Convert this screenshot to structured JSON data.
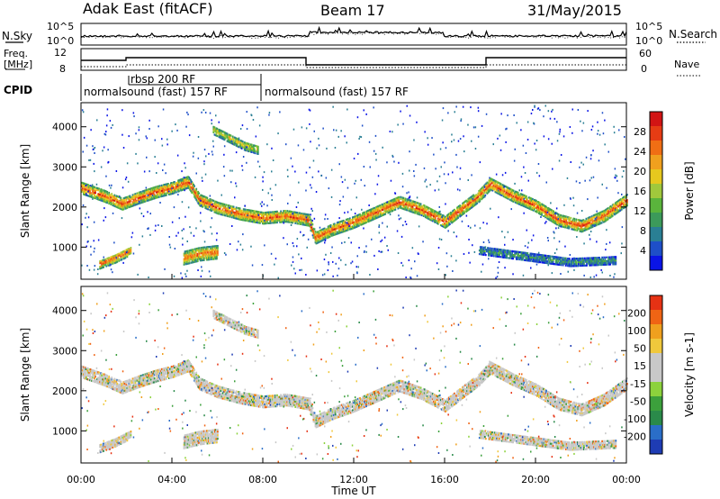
{
  "header": {
    "station": "Adak East (fitACF)",
    "beam": "Beam 17",
    "date": "31/May/2015"
  },
  "top_panels": {
    "nsky_label": "N.Sky",
    "nsearch_label": "N.Search",
    "noise_left_ticks": [
      "10^5",
      "10^0"
    ],
    "noise_right_ticks": [
      "10^5",
      "10^0"
    ],
    "freq_label_1": "Freq.",
    "freq_label_2": "[MHz]",
    "freq_ticks": [
      "12",
      "8"
    ],
    "nave_label": "Nave",
    "nave_ticks": [
      "60",
      "0"
    ],
    "cpid_label": "CPID",
    "cpid_segments": [
      "normalsound (fast) 157 RF",
      "rbsp 200 RF",
      "normalsound (fast) 157 RF"
    ]
  },
  "chart_data": [
    {
      "type": "heatmap",
      "panel": "power",
      "ylabel": "Slant Range [km]",
      "y_ticks": [
        "1000",
        "2000",
        "3000",
        "4000"
      ],
      "ylim": [
        200,
        4600
      ],
      "xlim_hours": [
        0,
        24
      ],
      "colorbar_label": "Power [dB]",
      "colorbar_ticks": [
        "28",
        "24",
        "20",
        "16",
        "12",
        "8",
        "4"
      ],
      "colorbar_colors": [
        "#0a14e6",
        "#1e4fc8",
        "#2a7f94",
        "#3c9a5a",
        "#5ab43c",
        "#a0c83c",
        "#e6c81e",
        "#f0a01e",
        "#f06e14",
        "#e63c14",
        "#d21414"
      ],
      "echo_bands": [
        {
          "name": "band-main",
          "points": [
            [
              0,
              2500
            ],
            [
              1.0,
              2300
            ],
            [
              1.8,
              2100
            ],
            [
              2.5,
              2250
            ],
            [
              3.3,
              2400
            ],
            [
              4.0,
              2500
            ],
            [
              4.7,
              2650
            ],
            [
              5.2,
              2200
            ],
            [
              6.0,
              2000
            ],
            [
              7.0,
              1850
            ],
            [
              8.0,
              1750
            ],
            [
              9.0,
              1800
            ],
            [
              10.0,
              1700
            ],
            [
              10.3,
              1250
            ],
            [
              11.0,
              1450
            ],
            [
              12.0,
              1650
            ],
            [
              13.0,
              1900
            ],
            [
              14.0,
              2150
            ],
            [
              15.0,
              1950
            ],
            [
              16.0,
              1650
            ],
            [
              16.8,
              2000
            ],
            [
              17.5,
              2300
            ],
            [
              18.0,
              2600
            ],
            [
              19.0,
              2300
            ],
            [
              20.0,
              2050
            ],
            [
              21.0,
              1700
            ],
            [
              22.0,
              1550
            ],
            [
              23.0,
              1800
            ],
            [
              24.0,
              2200
            ]
          ],
          "thickness": 280,
          "peak_db": 26
        },
        {
          "name": "band-upper",
          "points": [
            [
              5.8,
              3950
            ],
            [
              6.5,
              3750
            ],
            [
              7.2,
              3550
            ],
            [
              7.8,
              3450
            ]
          ],
          "thickness": 220,
          "peak_db": 18
        },
        {
          "name": "band-low-left",
          "points": [
            [
              0.8,
              600
            ],
            [
              1.5,
              750
            ],
            [
              2.2,
              950
            ]
          ],
          "thickness": 220,
          "peak_db": 26
        },
        {
          "name": "band-low-mid",
          "points": [
            [
              4.5,
              750
            ],
            [
              5.2,
              850
            ],
            [
              6.0,
              900
            ]
          ],
          "thickness": 320,
          "peak_db": 24
        },
        {
          "name": "band-late-low",
          "points": [
            [
              17.5,
              950
            ],
            [
              19.5,
              800
            ],
            [
              21.5,
              650
            ],
            [
              23.5,
              700
            ]
          ],
          "thickness": 200,
          "peak_db": 10
        }
      ]
    },
    {
      "type": "heatmap",
      "panel": "velocity",
      "ylabel": "Slant Range [km]",
      "y_ticks": [
        "1000",
        "2000",
        "3000",
        "4000"
      ],
      "ylim": [
        200,
        4600
      ],
      "xlim_hours": [
        0,
        24
      ],
      "colorbar_label": "Velocity [m s-1]",
      "colorbar_ticks": [
        "200",
        "100",
        "50",
        "15",
        "-15",
        "-50",
        "-100",
        "-200"
      ],
      "colorbar_colors": [
        "#1e3cb4",
        "#2a6ec8",
        "#2a8a4a",
        "#3ca03c",
        "#8cd23c",
        "#c8c8c8",
        "#c8c8c8",
        "#f0c83c",
        "#f0a01e",
        "#f06414",
        "#e63214"
      ],
      "x_ticks": [
        "00:00",
        "04:00",
        "08:00",
        "12:00",
        "16:00",
        "20:00",
        "00:00"
      ],
      "xlabel": "Time UT"
    }
  ]
}
